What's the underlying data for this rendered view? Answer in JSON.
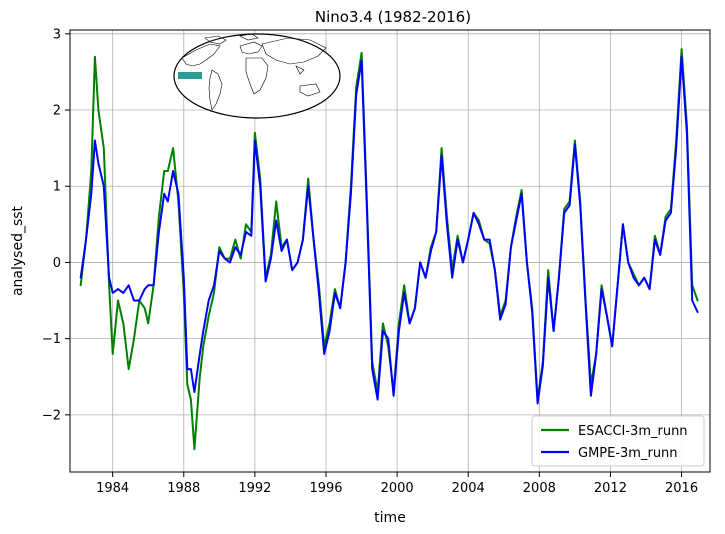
{
  "chart_data": {
    "type": "line",
    "title": "Nino3.4 (1982-2016)",
    "xlabel": "time",
    "ylabel": "analysed_sst",
    "xlim": [
      1981.6,
      2017.6
    ],
    "ylim": [
      -2.75,
      3.05
    ],
    "xticks": [
      1984,
      1988,
      1992,
      1996,
      2000,
      2004,
      2008,
      2012,
      2016
    ],
    "xtick_labels": [
      "1984",
      "1988",
      "1992",
      "1996",
      "2000",
      "2004",
      "2008",
      "2012",
      "2016"
    ],
    "yticks": [
      -2,
      -1,
      0,
      1,
      2,
      3
    ],
    "ytick_labels": [
      "−2",
      "−1",
      "0",
      "1",
      "2",
      "3"
    ],
    "grid": true,
    "legend_position": "lower-right",
    "inset": "world-map-nino34-region",
    "series": [
      {
        "name": "ESACCI-3m_runn",
        "color": "#008000",
        "x": [
          1982.2,
          1982.5,
          1982.8,
          1983.0,
          1983.2,
          1983.5,
          1983.8,
          1984.0,
          1984.3,
          1984.6,
          1984.9,
          1985.2,
          1985.5,
          1985.8,
          1986.0,
          1986.3,
          1986.6,
          1986.9,
          1987.1,
          1987.4,
          1987.7,
          1988.0,
          1988.2,
          1988.4,
          1988.6,
          1988.9,
          1989.1,
          1989.4,
          1989.7,
          1990.0,
          1990.3,
          1990.6,
          1990.9,
          1991.2,
          1991.5,
          1991.8,
          1992.0,
          1992.3,
          1992.6,
          1992.9,
          1993.2,
          1993.5,
          1993.8,
          1994.1,
          1994.4,
          1994.7,
          1995.0,
          1995.3,
          1995.6,
          1995.9,
          1996.2,
          1996.5,
          1996.8,
          1997.1,
          1997.4,
          1997.7,
          1998.0,
          1998.3,
          1998.6,
          1998.9,
          1999.2,
          1999.5,
          1999.8,
          2000.1,
          2000.4,
          2000.7,
          2001.0,
          2001.3,
          2001.6,
          2001.9,
          2002.2,
          2002.5,
          2002.8,
          2003.1,
          2003.4,
          2003.7,
          2004.0,
          2004.3,
          2004.6,
          2004.9,
          2005.2,
          2005.5,
          2005.8,
          2006.1,
          2006.4,
          2006.7,
          2007.0,
          2007.3,
          2007.6,
          2007.9,
          2008.2,
          2008.5,
          2008.8,
          2009.1,
          2009.4,
          2009.7,
          2010.0,
          2010.3,
          2010.6,
          2010.9,
          2011.2,
          2011.5,
          2011.8,
          2012.1,
          2012.4,
          2012.7,
          2013.0,
          2013.3,
          2013.6,
          2013.9,
          2014.2,
          2014.5,
          2014.8,
          2015.1,
          2015.4,
          2015.7,
          2016.0,
          2016.3,
          2016.6,
          2016.9
        ],
        "values": [
          -0.3,
          0.3,
          1.2,
          2.7,
          2.0,
          1.5,
          -0.3,
          -1.2,
          -0.5,
          -0.8,
          -1.4,
          -1.0,
          -0.5,
          -0.6,
          -0.8,
          -0.3,
          0.6,
          1.2,
          1.2,
          1.5,
          0.8,
          -0.4,
          -1.6,
          -1.8,
          -2.45,
          -1.5,
          -1.1,
          -0.7,
          -0.4,
          0.2,
          0.05,
          0.05,
          0.3,
          0.05,
          0.5,
          0.4,
          1.7,
          1.1,
          -0.2,
          0.1,
          0.8,
          0.2,
          0.3,
          -0.1,
          0.0,
          0.3,
          1.1,
          0.3,
          -0.3,
          -1.1,
          -0.8,
          -0.35,
          -0.6,
          0.0,
          1.0,
          2.3,
          2.75,
          0.8,
          -1.3,
          -1.7,
          -0.8,
          -1.1,
          -1.7,
          -0.8,
          -0.3,
          -0.8,
          -0.6,
          0.0,
          -0.2,
          0.2,
          0.4,
          1.5,
          0.6,
          -0.1,
          0.35,
          0.0,
          0.3,
          0.65,
          0.55,
          0.3,
          0.25,
          -0.1,
          -0.7,
          -0.5,
          0.2,
          0.6,
          0.95,
          0.0,
          -0.6,
          -1.8,
          -1.3,
          -0.1,
          -0.9,
          -0.2,
          0.7,
          0.8,
          1.6,
          0.8,
          -0.5,
          -1.6,
          -1.2,
          -0.3,
          -0.7,
          -1.1,
          -0.3,
          0.5,
          0.0,
          -0.15,
          -0.3,
          -0.2,
          -0.35,
          0.35,
          0.1,
          0.6,
          0.7,
          1.6,
          2.8,
          1.8,
          -0.3,
          -0.5
        ]
      },
      {
        "name": "GMPE-3m_runn",
        "color": "#0000ff",
        "x": [
          1982.2,
          1982.5,
          1982.8,
          1983.0,
          1983.2,
          1983.5,
          1983.8,
          1984.0,
          1984.3,
          1984.6,
          1984.9,
          1985.2,
          1985.5,
          1985.8,
          1986.0,
          1986.3,
          1986.6,
          1986.9,
          1987.1,
          1987.4,
          1987.7,
          1988.0,
          1988.2,
          1988.4,
          1988.6,
          1988.9,
          1989.1,
          1989.4,
          1989.7,
          1990.0,
          1990.3,
          1990.6,
          1990.9,
          1991.2,
          1991.5,
          1991.8,
          1992.0,
          1992.3,
          1992.6,
          1992.9,
          1993.2,
          1993.5,
          1993.8,
          1994.1,
          1994.4,
          1994.7,
          1995.0,
          1995.3,
          1995.6,
          1995.9,
          1996.2,
          1996.5,
          1996.8,
          1997.1,
          1997.4,
          1997.7,
          1998.0,
          1998.3,
          1998.6,
          1998.9,
          1999.2,
          1999.5,
          1999.8,
          2000.1,
          2000.4,
          2000.7,
          2001.0,
          2001.3,
          2001.6,
          2001.9,
          2002.2,
          2002.5,
          2002.8,
          2003.1,
          2003.4,
          2003.7,
          2004.0,
          2004.3,
          2004.6,
          2004.9,
          2005.2,
          2005.5,
          2005.8,
          2006.1,
          2006.4,
          2006.7,
          2007.0,
          2007.3,
          2007.6,
          2007.9,
          2008.2,
          2008.5,
          2008.8,
          2009.1,
          2009.4,
          2009.7,
          2010.0,
          2010.3,
          2010.6,
          2010.9,
          2011.2,
          2011.5,
          2011.8,
          2012.1,
          2012.4,
          2012.7,
          2013.0,
          2013.3,
          2013.6,
          2013.9,
          2014.2,
          2014.5,
          2014.8,
          2015.1,
          2015.4,
          2015.7,
          2016.0,
          2016.3,
          2016.6,
          2016.9
        ],
        "values": [
          -0.2,
          0.3,
          0.9,
          1.6,
          1.3,
          1.0,
          -0.2,
          -0.4,
          -0.35,
          -0.4,
          -0.3,
          -0.5,
          -0.5,
          -0.35,
          -0.3,
          -0.3,
          0.4,
          0.9,
          0.8,
          1.2,
          0.9,
          -0.2,
          -1.4,
          -1.4,
          -1.7,
          -1.2,
          -0.9,
          -0.5,
          -0.3,
          0.15,
          0.05,
          0.0,
          0.2,
          0.1,
          0.4,
          0.35,
          1.6,
          1.0,
          -0.25,
          0.05,
          0.55,
          0.15,
          0.3,
          -0.1,
          0.0,
          0.3,
          1.0,
          0.3,
          -0.4,
          -1.2,
          -0.9,
          -0.4,
          -0.6,
          0.0,
          0.9,
          2.2,
          2.65,
          0.7,
          -1.4,
          -1.8,
          -0.9,
          -1.0,
          -1.75,
          -0.9,
          -0.4,
          -0.8,
          -0.6,
          0.0,
          -0.2,
          0.15,
          0.4,
          1.4,
          0.5,
          -0.2,
          0.3,
          0.0,
          0.3,
          0.65,
          0.5,
          0.3,
          0.3,
          -0.1,
          -0.75,
          -0.55,
          0.2,
          0.55,
          0.9,
          0.0,
          -0.65,
          -1.85,
          -1.35,
          -0.2,
          -0.9,
          -0.2,
          0.65,
          0.75,
          1.55,
          0.75,
          -0.55,
          -1.75,
          -1.2,
          -0.35,
          -0.7,
          -1.1,
          -0.3,
          0.5,
          0.0,
          -0.2,
          -0.3,
          -0.2,
          -0.35,
          0.3,
          0.1,
          0.55,
          0.65,
          1.5,
          2.7,
          1.7,
          -0.5,
          -0.65
        ]
      }
    ]
  }
}
